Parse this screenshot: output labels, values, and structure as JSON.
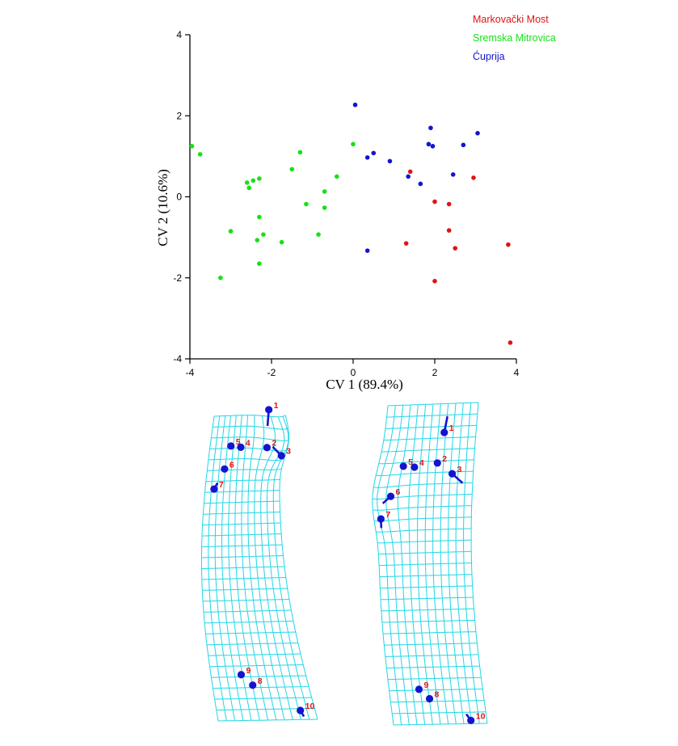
{
  "colors": {
    "markovacki": "#e01414",
    "sremska": "#18e018",
    "cuprija": "#1414d0",
    "grid": "#22d6e6",
    "landmark": "#1414d0",
    "landmark_label": "#e01414",
    "axis": "#000000"
  },
  "chart_data": {
    "type": "scatter",
    "title": "",
    "xlabel": "CV 1 (89.4%)",
    "ylabel": "CV 2 (10.6%)",
    "xlim": [
      -4,
      4
    ],
    "ylim": [
      -4,
      4
    ],
    "x_ticks": [
      "-4",
      "-2",
      "0",
      "2",
      "4"
    ],
    "y_ticks": [
      "-4",
      "-2",
      "0",
      "2",
      "4"
    ],
    "grid": false,
    "legend_position": "top-right",
    "series": [
      {
        "name": "Markovački Most",
        "color_key": "markovacki",
        "points": [
          [
            1.4,
            0.62
          ],
          [
            2.95,
            0.47
          ],
          [
            2.0,
            -0.12
          ],
          [
            2.35,
            -0.18
          ],
          [
            2.35,
            -0.83
          ],
          [
            2.5,
            -1.27
          ],
          [
            1.3,
            -1.15
          ],
          [
            3.8,
            -1.18
          ],
          [
            2.0,
            -2.08
          ],
          [
            3.85,
            -3.6
          ]
        ]
      },
      {
        "name": "Sremska Mitrovica",
        "color_key": "sremska",
        "points": [
          [
            -3.95,
            1.25
          ],
          [
            -3.75,
            1.05
          ],
          [
            -1.3,
            1.1
          ],
          [
            0.0,
            1.3
          ],
          [
            -1.5,
            0.68
          ],
          [
            -0.4,
            0.5
          ],
          [
            -2.6,
            0.35
          ],
          [
            -2.45,
            0.4
          ],
          [
            -2.3,
            0.45
          ],
          [
            -2.55,
            0.22
          ],
          [
            -0.7,
            0.13
          ],
          [
            -1.15,
            -0.18
          ],
          [
            -0.7,
            -0.27
          ],
          [
            -2.3,
            -0.5
          ],
          [
            -3.0,
            -0.85
          ],
          [
            -2.2,
            -0.93
          ],
          [
            -0.85,
            -0.93
          ],
          [
            -2.35,
            -1.07
          ],
          [
            -1.75,
            -1.12
          ],
          [
            -2.3,
            -1.65
          ],
          [
            -3.25,
            -2.0
          ]
        ]
      },
      {
        "name": "Ćuprija",
        "color_key": "cuprija",
        "points": [
          [
            0.05,
            2.27
          ],
          [
            1.9,
            1.7
          ],
          [
            3.05,
            1.57
          ],
          [
            1.85,
            1.3
          ],
          [
            2.7,
            1.28
          ],
          [
            1.95,
            1.25
          ],
          [
            0.5,
            1.08
          ],
          [
            0.35,
            0.97
          ],
          [
            0.9,
            0.88
          ],
          [
            1.35,
            0.5
          ],
          [
            2.45,
            0.55
          ],
          [
            1.65,
            0.32
          ],
          [
            0.35,
            -1.33
          ]
        ]
      }
    ]
  },
  "deformation_grids": [
    {
      "shape": "left",
      "landmarks": [
        {
          "label": "1",
          "u": 0.75,
          "v": -0.02,
          "du": -0.05,
          "dv": 0.05
        },
        {
          "label": "2",
          "u": 0.7,
          "v": 0.1,
          "du": 0.0,
          "dv": 0.0
        },
        {
          "label": "3",
          "u": 0.87,
          "v": 0.125,
          "du": -0.13,
          "dv": -0.03
        },
        {
          "label": "4",
          "u": 0.44,
          "v": 0.105,
          "du": 0.0,
          "dv": 0.0
        },
        {
          "label": "5",
          "u": 0.3,
          "v": 0.1,
          "du": 0.0,
          "dv": 0.0
        },
        {
          "label": "6",
          "u": 0.24,
          "v": 0.175,
          "du": 0.0,
          "dv": 0.0
        },
        {
          "label": "7",
          "u": 0.12,
          "v": 0.24,
          "du": 0.04,
          "dv": -0.02
        },
        {
          "label": "8",
          "u": 0.42,
          "v": 0.885,
          "du": 0.0,
          "dv": 0.0
        },
        {
          "label": "9",
          "u": 0.32,
          "v": 0.85,
          "du": 0.0,
          "dv": 0.0
        },
        {
          "label": "10",
          "u": 0.85,
          "v": 0.97,
          "du": 0.02,
          "dv": 0.02
        }
      ]
    },
    {
      "shape": "right",
      "landmarks": [
        {
          "label": "1",
          "u": 0.65,
          "v": 0.09,
          "du": 0.02,
          "dv": -0.05
        },
        {
          "label": "2",
          "u": 0.6,
          "v": 0.185,
          "du": 0.0,
          "dv": 0.0
        },
        {
          "label": "3",
          "u": 0.77,
          "v": 0.22,
          "du": 0.12,
          "dv": 0.03
        },
        {
          "label": "4",
          "u": 0.36,
          "v": 0.195,
          "du": 0.0,
          "dv": 0.0
        },
        {
          "label": "5",
          "u": 0.26,
          "v": 0.19,
          "du": 0.0,
          "dv": 0.0
        },
        {
          "label": "6",
          "u": 0.2,
          "v": 0.28,
          "du": -0.06,
          "dv": 0.02
        },
        {
          "label": "7",
          "u": 0.1,
          "v": 0.35,
          "du": -0.02,
          "dv": 0.03
        },
        {
          "label": "8",
          "u": 0.42,
          "v": 0.92,
          "du": 0.0,
          "dv": 0.0
        },
        {
          "label": "9",
          "u": 0.32,
          "v": 0.89,
          "du": 0.0,
          "dv": 0.0
        },
        {
          "label": "10",
          "u": 0.83,
          "v": 0.99,
          "du": -0.04,
          "dv": -0.02
        }
      ]
    }
  ]
}
